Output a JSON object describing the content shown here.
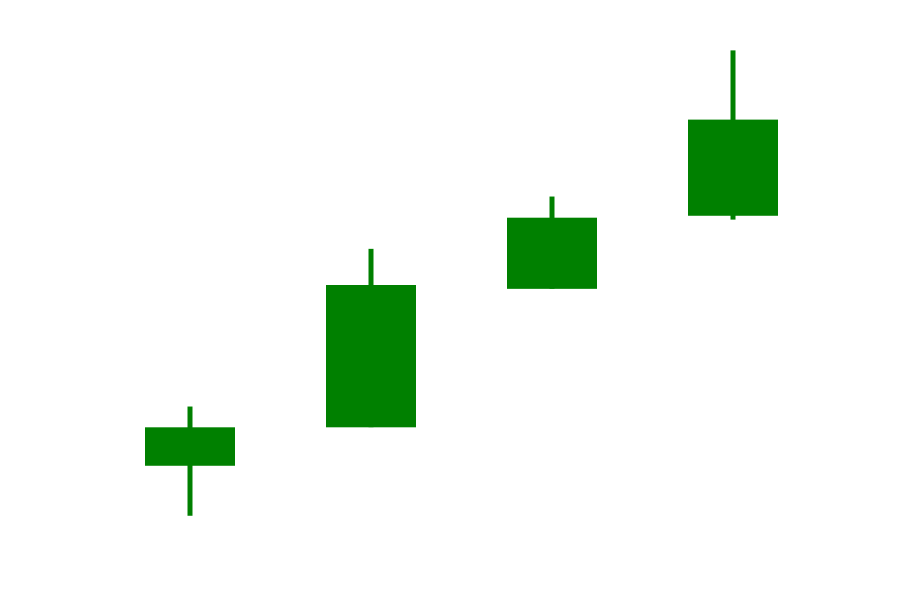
{
  "chart_data": {
    "type": "candlestick",
    "colors": {
      "up": "#008000",
      "down": "#ff0000"
    },
    "grid": false,
    "axes_visible": false,
    "ylim": [
      0,
      100
    ],
    "candles": [
      {
        "open": 18.0,
        "high": 33.4,
        "low": 5.0,
        "close": 28.0
      },
      {
        "open": 28.0,
        "high": 74.4,
        "low": 28.0,
        "close": 65.0
      },
      {
        "open": 64.0,
        "high": 88.0,
        "low": 64.0,
        "close": 82.5
      },
      {
        "open": 83.0,
        "high": 126.0,
        "low": 82.0,
        "close": 108.0
      }
    ]
  }
}
